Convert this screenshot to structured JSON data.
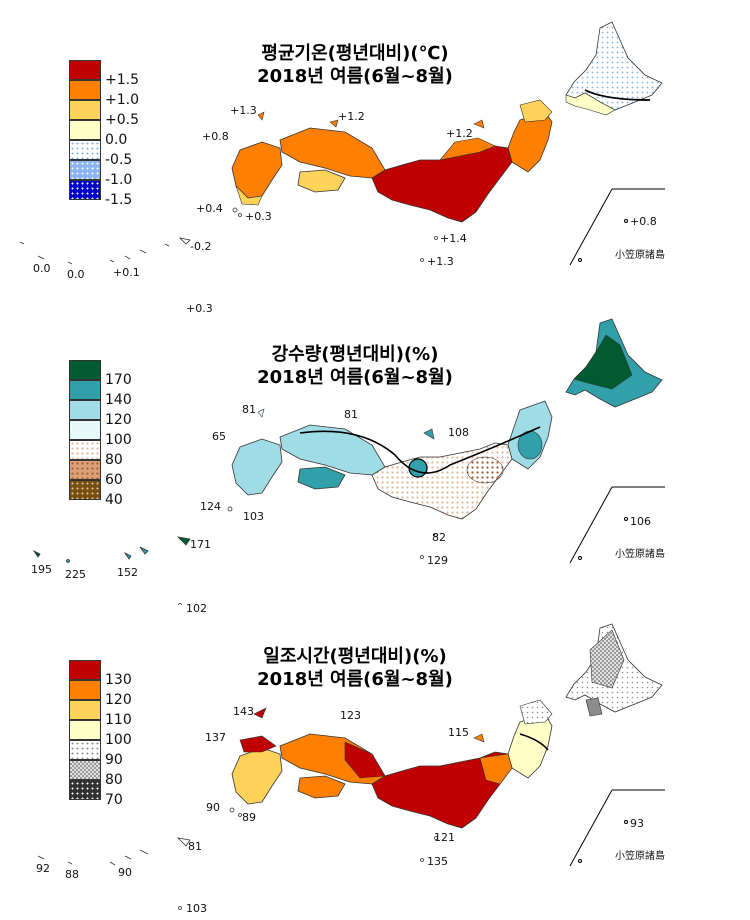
{
  "panels": [
    {
      "title_line1": "평균기온(평년대비)(℃)",
      "title_line2": "2018년 여름(6월~8월)",
      "legend": [
        {
          "label": "+1.5",
          "color": "#c00000",
          "pattern": "solid"
        },
        {
          "label": "+1.0",
          "color": "#ff8000",
          "pattern": "solid"
        },
        {
          "label": "+0.5",
          "color": "#ffd25a",
          "pattern": "solid"
        },
        {
          "label": "0.0",
          "color": "#ffffc8",
          "pattern": "solid"
        },
        {
          "label": "-0.5",
          "color": "#ffffff",
          "pattern": "dots-lightblue"
        },
        {
          "label": "-1.0",
          "color": "#8cb4f0",
          "pattern": "dots-white"
        },
        {
          "label": "-1.5",
          "color": "#0000c8",
          "pattern": "dots-white"
        }
      ],
      "values": [
        "+1.3",
        "+1.2",
        "+1.2",
        "+0.8",
        "+0.4",
        "+0.3",
        "+1.4",
        "+1.3",
        "0.0",
        "0.0",
        "+0.1",
        "-0.2",
        "+0.3",
        "+0.8"
      ],
      "ogasawara_label": "小笠原諸島"
    },
    {
      "title_line1": "강수량(평년대비)(%)",
      "title_line2": "2018년 여름(6월~8월)",
      "legend": [
        {
          "label": "170",
          "color": "#005a32",
          "pattern": "solid"
        },
        {
          "label": "140",
          "color": "#32a0aa",
          "pattern": "solid"
        },
        {
          "label": "120",
          "color": "#a0dce6",
          "pattern": "solid"
        },
        {
          "label": "100",
          "color": "#e6fafa",
          "pattern": "solid"
        },
        {
          "label": "80",
          "color": "#ffffff",
          "pattern": "dots-tan"
        },
        {
          "label": "60",
          "color": "#dca078",
          "pattern": "dots-brown"
        },
        {
          "label": "40",
          "color": "#785014",
          "pattern": "dots-white"
        }
      ],
      "values": [
        "81",
        "81",
        "108",
        "65",
        "124",
        "103",
        "82",
        "129",
        "195",
        "225",
        "152",
        "171",
        "102",
        "106"
      ],
      "ogasawara_label": "小笠原諸島"
    },
    {
      "title_line1": "일조시간(평년대비)(%)",
      "title_line2": "2018년 여름(6월~8월)",
      "legend": [
        {
          "label": "130",
          "color": "#c00000",
          "pattern": "solid"
        },
        {
          "label": "120",
          "color": "#ff8000",
          "pattern": "solid"
        },
        {
          "label": "110",
          "color": "#ffd25a",
          "pattern": "solid"
        },
        {
          "label": "100",
          "color": "#ffffc8",
          "pattern": "solid"
        },
        {
          "label": "90",
          "color": "#ffffff",
          "pattern": "dots-gray"
        },
        {
          "label": "80",
          "color": "#b4b4b4",
          "pattern": "check"
        },
        {
          "label": "70",
          "color": "#323232",
          "pattern": "dots-white"
        }
      ],
      "values": [
        "143",
        "123",
        "115",
        "137",
        "90",
        "89",
        "121",
        "135",
        "92",
        "88",
        "90",
        "81",
        "103",
        "93"
      ],
      "ogasawara_label": "小笠原諸島"
    }
  ],
  "colors": {
    "temp": [
      "#c00000",
      "#ff8000",
      "#ffd25a",
      "#ffffc8"
    ],
    "precip": [
      "#005a32",
      "#32a0aa",
      "#a0dce6",
      "#e6fafa",
      "#dca078",
      "#785014"
    ],
    "sun": [
      "#c00000",
      "#ff8000",
      "#ffd25a",
      "#ffffc8",
      "#b4b4b4"
    ]
  }
}
